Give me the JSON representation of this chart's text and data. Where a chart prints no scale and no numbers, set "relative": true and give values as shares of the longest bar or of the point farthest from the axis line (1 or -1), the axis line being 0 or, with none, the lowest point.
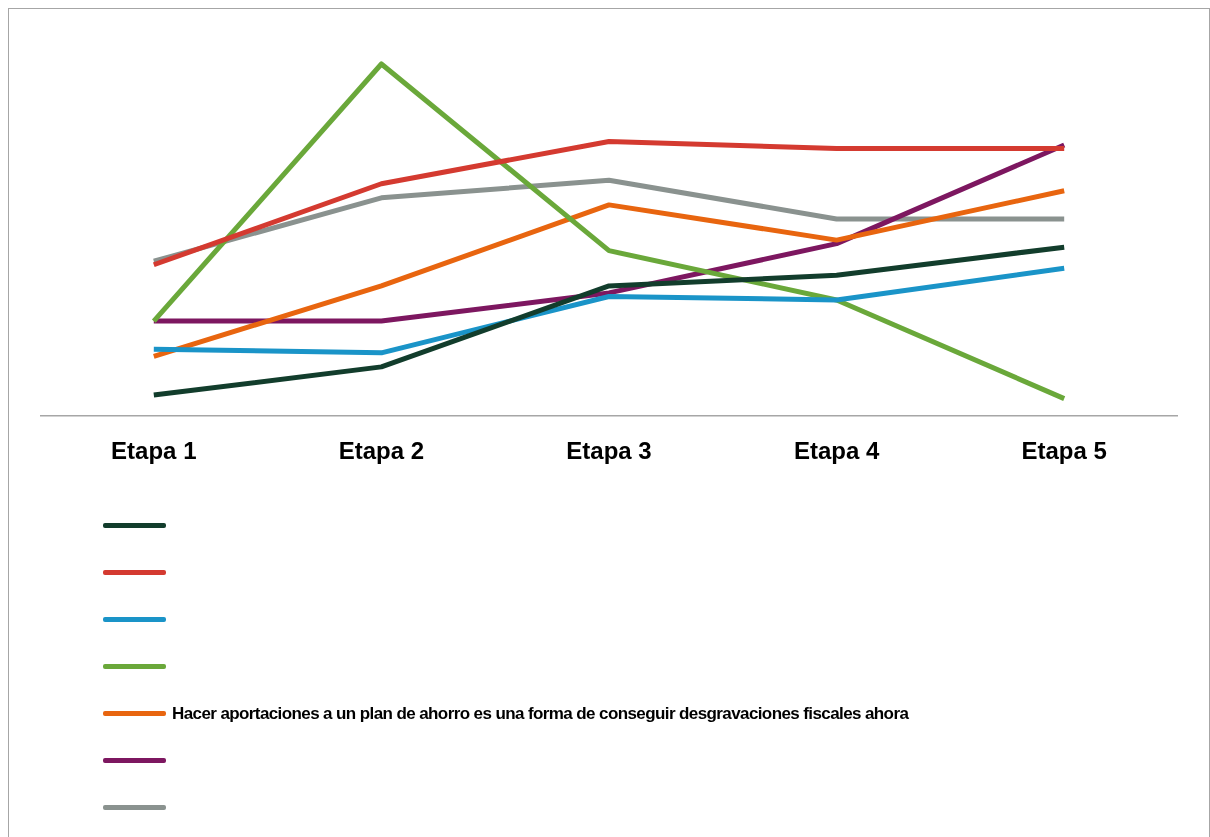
{
  "chart_data": {
    "type": "line",
    "relative": true,
    "categories": [
      "Etapa 1",
      "Etapa 2",
      "Etapa 3",
      "Etapa 4",
      "Etapa 5"
    ],
    "legend": "bottom",
    "grid": false,
    "marker": "none",
    "line_style": "solid",
    "series": [
      {
        "color": "#123d2c",
        "values": [
          0.06,
          0.14,
          0.37,
          0.4,
          0.48
        ]
      },
      {
        "color": "#d43a30",
        "values": [
          0.43,
          0.66,
          0.78,
          0.76,
          0.76
        ]
      },
      {
        "color": "#1a94c8",
        "values": [
          0.19,
          0.18,
          0.34,
          0.33,
          0.42
        ]
      },
      {
        "color": "#6aa83a",
        "values": [
          0.27,
          1,
          0.47,
          0.33,
          0.05
        ]
      },
      {
        "name": "Hacer aportaciones a un plan de ahorro es una forma de conseguir desgravaciones fiscales ahora",
        "color": "#e8650f",
        "values": [
          0.17,
          0.37,
          0.6,
          0.5,
          0.64
        ]
      },
      {
        "color": "#7d1760",
        "values": [
          0.27,
          0.27,
          0.35,
          0.49,
          0.77
        ]
      },
      {
        "color": "#8a928f",
        "values": [
          0.44,
          0.62,
          0.67,
          0.56,
          0.56
        ]
      }
    ]
  }
}
